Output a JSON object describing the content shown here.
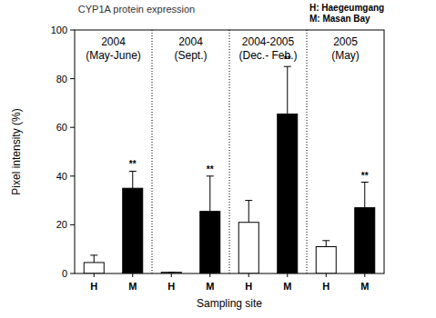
{
  "chart_data": {
    "type": "bar",
    "title": "CYP1A protein expression",
    "key_labels": [
      "H: Haegeumgang",
      "M: Masan Bay"
    ],
    "period_labels": [
      [
        "2004",
        "(May-June)"
      ],
      [
        "2004",
        "(Sept.)"
      ],
      [
        "2004-2005",
        "(Dec.- Feb.)"
      ],
      [
        "2005",
        "(May)"
      ]
    ],
    "categories": [
      "H",
      "M",
      "H",
      "M",
      "H",
      "M",
      "H",
      "M"
    ],
    "values": [
      4.5,
      35,
      0.5,
      25.5,
      21,
      65.5,
      11,
      27
    ],
    "errors": [
      3,
      7,
      0,
      14.5,
      9,
      19.5,
      2.5,
      10.5
    ],
    "colors": [
      "#ffffff",
      "#000000",
      "#ffffff",
      "#000000",
      "#ffffff",
      "#000000",
      "#ffffff",
      "#000000"
    ],
    "annotations": [
      {
        "index": 1,
        "text": "**"
      },
      {
        "index": 3,
        "text": "**"
      },
      {
        "index": 5,
        "text": "**"
      },
      {
        "index": 7,
        "text": "**"
      }
    ],
    "x_label": "Sampling site",
    "y_label": "Pixel intensity (%)",
    "ylim": [
      0,
      100
    ],
    "yticks": [
      0,
      20,
      40,
      60,
      80,
      100
    ],
    "grid": false
  }
}
